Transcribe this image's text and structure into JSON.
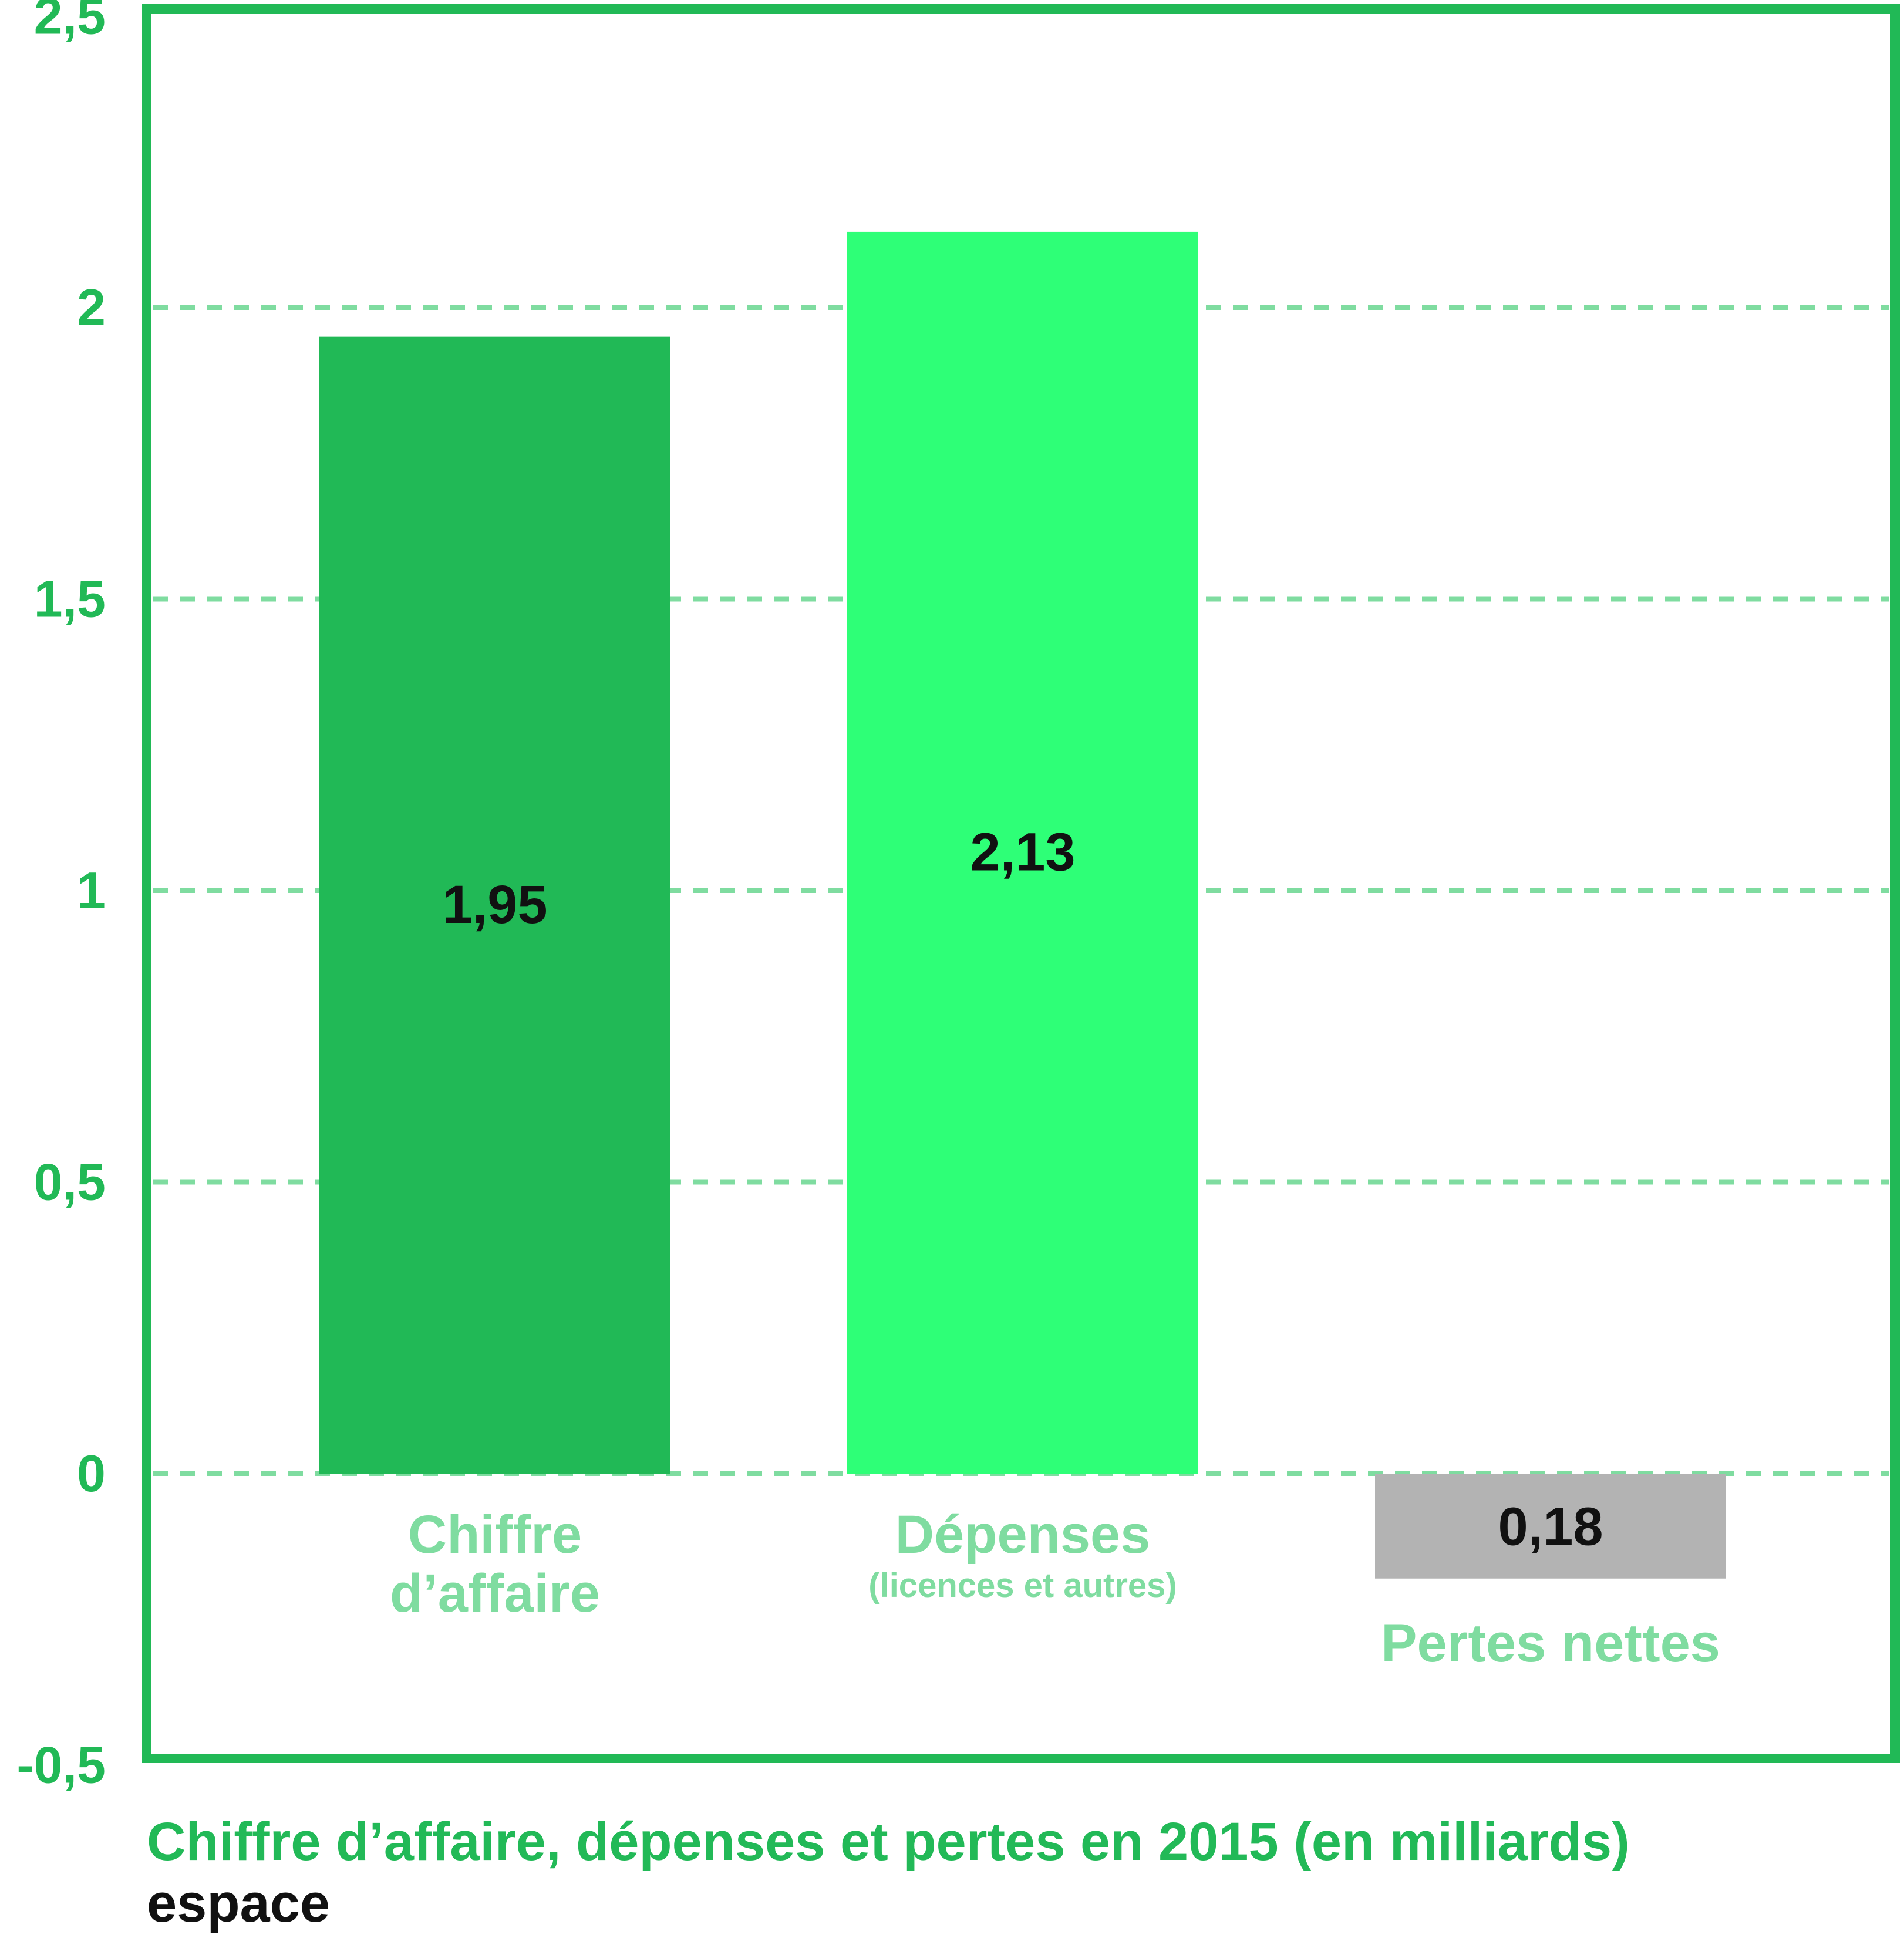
{
  "chart_data": {
    "type": "bar",
    "title": "Chiffre d’affaire, dépenses et pertes en 2015 (en milliards)",
    "source": "espace",
    "xlabel": "",
    "ylabel": "",
    "ylim": [
      -0.5,
      2.5
    ],
    "yticks": [
      2.5,
      2,
      1.5,
      1,
      0.5,
      0,
      -0.5
    ],
    "ytick_labels": [
      "2,5",
      "2",
      "1,5",
      "1",
      "0,5",
      "0",
      "-0,5"
    ],
    "grid": true,
    "categories": [
      {
        "label_lines": [
          "Chiffre",
          "d’affaire"
        ],
        "sublabel": ""
      },
      {
        "label_lines": [
          "Dépenses"
        ],
        "sublabel": "(licences et autres)"
      },
      {
        "label_lines": [
          "Pertes nettes"
        ],
        "sublabel": ""
      }
    ],
    "values": [
      1.95,
      2.13,
      -0.18
    ],
    "value_labels": [
      "1,95",
      "2,13",
      "0,18"
    ],
    "colors": {
      "bars": [
        "#21b956",
        "#2eff77",
        "#b3b3b3"
      ],
      "frame": "#21b956",
      "grid": "#7fdca0",
      "tick_text": "#21b956",
      "category_text": "#7fdca0",
      "value_text": "#111111"
    }
  }
}
